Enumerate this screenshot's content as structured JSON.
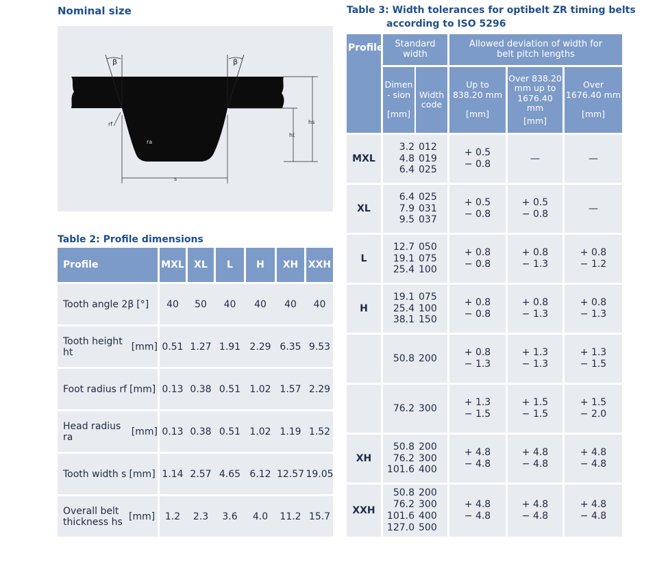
{
  "left_heading": "Nominal size",
  "right_heading_line1": "Table 3: Width tolerances for optibelt ZR timing belts",
  "right_heading_line2": "according to ISO 5296",
  "diagram": {
    "beta_left": "β",
    "beta_right": "β",
    "label_rf": "rf",
    "label_ra": "ra",
    "label_hs": "hs",
    "label_ht": "ht",
    "label_s": "s"
  },
  "table2": {
    "title": "Table 2: Profile dimensions",
    "header_label": "Profile",
    "profiles": [
      "MXL",
      "XL",
      "L",
      "H",
      "XH",
      "XXH"
    ],
    "rows": [
      {
        "label": "Tooth angle 2β",
        "unit": "[°]",
        "values": [
          "40",
          "50",
          "40",
          "40",
          "40",
          "40"
        ]
      },
      {
        "label": "Tooth height ht",
        "unit": "[mm]",
        "values": [
          "0.51",
          "1.27",
          "1.91",
          "2.29",
          "6.35",
          "9.53"
        ]
      },
      {
        "label": "Foot radius rf",
        "unit": "[mm]",
        "values": [
          "0.13",
          "0.38",
          "0.51",
          "1.02",
          "1.57",
          "2.29"
        ]
      },
      {
        "label": "Head radius ra",
        "unit": "[mm]",
        "values": [
          "0.13",
          "0.38",
          "0.51",
          "1.02",
          "1.19",
          "1.52"
        ]
      },
      {
        "label": "Tooth width s",
        "unit": "[mm]",
        "values": [
          "1.14",
          "2.57",
          "4.65",
          "6.12",
          "12.57",
          "19.05"
        ]
      },
      {
        "label": "Overall belt thickness hs",
        "unit": "[mm]",
        "values": [
          "1.2",
          "2.3",
          "3.6",
          "4.0",
          "11.2",
          "15.7"
        ]
      }
    ]
  },
  "table3": {
    "header_profile": "Profile",
    "header_standard_width": "Standard width",
    "header_allowed_deviation": "Allowed deviation of width for belt pitch lengths",
    "sub_dimension": "Dimen- sion",
    "sub_width_code": "Width code",
    "sub_up_to": "Up to 838.20 mm",
    "sub_over_up_to": "Over 838.20 mm up to 1676.40 mm",
    "sub_over": "Over 1676.40 mm",
    "unit": "[mm]",
    "groups": [
      {
        "profile": "MXL",
        "dims": [
          "3.2",
          "4.8",
          "6.4"
        ],
        "codes": [
          "012",
          "019",
          "025"
        ],
        "col1": [
          "+ 0.5",
          "− 0.8"
        ],
        "col2": [
          "—"
        ],
        "col3": [
          "—"
        ]
      },
      {
        "profile": "XL",
        "dims": [
          "6.4",
          "7.9",
          "9.5"
        ],
        "codes": [
          "025",
          "031",
          "037"
        ],
        "col1": [
          "+ 0.5",
          "− 0.8"
        ],
        "col2": [
          "+ 0.5",
          "− 0.8"
        ],
        "col3": [
          "—"
        ]
      },
      {
        "profile": "L",
        "dims": [
          "12.7",
          "19.1",
          "25.4"
        ],
        "codes": [
          "050",
          "075",
          "100"
        ],
        "col1": [
          "+ 0.8",
          "− 0.8"
        ],
        "col2": [
          "+ 0.8",
          "− 1.3"
        ],
        "col3": [
          "+ 0.8",
          "− 1.2"
        ]
      },
      {
        "profile": "H",
        "dims": [
          "19.1",
          "25.4",
          "38.1"
        ],
        "codes": [
          "075",
          "100",
          "150"
        ],
        "col1": [
          "+ 0.8",
          "− 0.8"
        ],
        "col2": [
          "+ 0.8",
          "− 1.3"
        ],
        "col3": [
          "+ 0.8",
          "− 1.3"
        ]
      },
      {
        "profile": "",
        "dims": [
          "50.8"
        ],
        "codes": [
          "200"
        ],
        "col1": [
          "+ 0.8",
          "− 1.3"
        ],
        "col2": [
          "+ 1.3",
          "− 1.3"
        ],
        "col3": [
          "+ 1.3",
          "− 1.5"
        ]
      },
      {
        "profile": "",
        "dims": [
          "76.2"
        ],
        "codes": [
          "300"
        ],
        "col1": [
          "+ 1.3",
          "− 1.5"
        ],
        "col2": [
          "+ 1.5",
          "− 1.5"
        ],
        "col3": [
          "+ 1.5",
          "− 2.0"
        ]
      },
      {
        "profile": "XH",
        "dims": [
          "50.8",
          "76.2",
          "101.6"
        ],
        "codes": [
          "200",
          "300",
          "400"
        ],
        "col1": [
          "+ 4.8",
          "− 4.8"
        ],
        "col2": [
          "+ 4.8",
          "− 4.8"
        ],
        "col3": [
          "+ 4.8",
          "− 4.8"
        ]
      },
      {
        "profile": "XXH",
        "dims": [
          "50.8",
          "76.2",
          "101.6",
          "127.0"
        ],
        "codes": [
          "200",
          "300",
          "400",
          "500"
        ],
        "col1": [
          "+ 4.8",
          "− 4.8"
        ],
        "col2": [
          "+ 4.8",
          "− 4.8"
        ],
        "col3": [
          "+ 4.8",
          "− 4.8"
        ]
      }
    ]
  }
}
